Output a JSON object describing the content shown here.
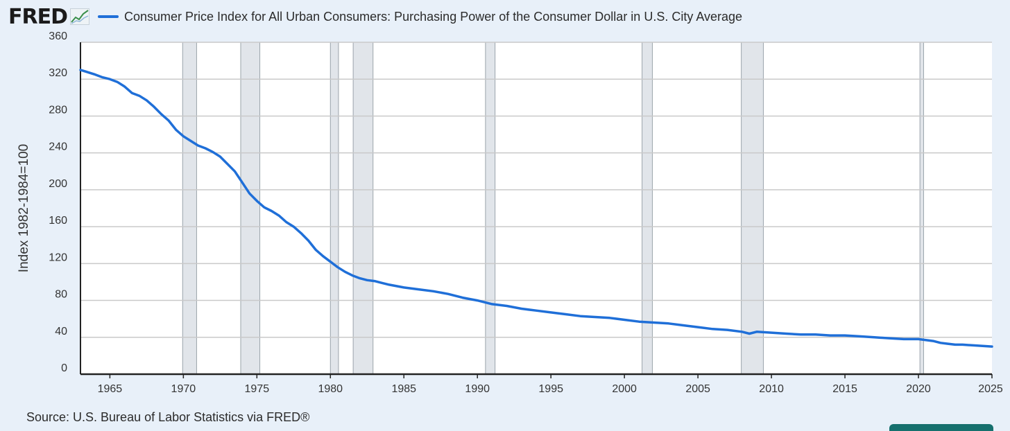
{
  "header": {
    "logo_text": "FRED",
    "logo_icon": "line-chart-icon",
    "legend_label": "Consumer Price Index for All Urban Consumers: Purchasing Power of the Consumer Dollar in U.S. City Average"
  },
  "footer": {
    "source": "Source: U.S. Bureau of Labor Statistics via FRED®"
  },
  "colors": {
    "series": "#1f6fd8",
    "recession": "#e1e5ea",
    "background": "#e8f0f9"
  },
  "chart_data": {
    "type": "line",
    "title": "Consumer Price Index for All Urban Consumers: Purchasing Power of the Consumer Dollar in U.S. City Average",
    "xlabel": "",
    "ylabel": "Index 1982-1984=100",
    "xlim": [
      1963.0,
      2025.0
    ],
    "ylim": [
      0,
      360
    ],
    "grid": true,
    "yticks": [
      0,
      40,
      80,
      120,
      160,
      200,
      240,
      280,
      320,
      360
    ],
    "xticks": [
      1965,
      1970,
      1975,
      1980,
      1985,
      1990,
      1995,
      2000,
      2005,
      2010,
      2015,
      2020,
      2025
    ],
    "recessions": [
      [
        1969.95,
        1970.9
      ],
      [
        1973.9,
        1975.2
      ],
      [
        1980.0,
        1980.55
      ],
      [
        1981.55,
        1982.9
      ],
      [
        1990.55,
        1991.2
      ],
      [
        2001.2,
        2001.9
      ],
      [
        2007.95,
        2009.45
      ],
      [
        2020.1,
        2020.35
      ]
    ],
    "series": [
      {
        "name": "Consumer Price Index for All Urban Consumers: Purchasing Power of the Consumer Dollar in U.S. City Average",
        "x": [
          1963.0,
          1963.4,
          1964.0,
          1964.5,
          1965.0,
          1965.5,
          1966.0,
          1966.5,
          1967.0,
          1967.5,
          1968.0,
          1968.5,
          1969.0,
          1969.5,
          1970.0,
          1970.5,
          1971.0,
          1971.5,
          1972.0,
          1972.5,
          1973.0,
          1973.5,
          1974.0,
          1974.5,
          1975.0,
          1975.5,
          1976.0,
          1976.5,
          1977.0,
          1977.5,
          1978.0,
          1978.5,
          1979.0,
          1979.5,
          1980.0,
          1980.5,
          1981.0,
          1981.5,
          1982.0,
          1982.5,
          1983.0,
          1983.5,
          1984.0,
          1985.0,
          1986.0,
          1987.0,
          1988.0,
          1989.0,
          1990.0,
          1991.0,
          1992.0,
          1993.0,
          1994.0,
          1995.0,
          1996.0,
          1997.0,
          1998.0,
          1999.0,
          2000.0,
          2001.0,
          2002.0,
          2003.0,
          2004.0,
          2005.0,
          2006.0,
          2007.0,
          2008.0,
          2008.5,
          2009.0,
          2010.0,
          2011.0,
          2012.0,
          2013.0,
          2014.0,
          2015.0,
          2016.0,
          2017.0,
          2018.0,
          2019.0,
          2020.0,
          2021.0,
          2021.5,
          2022.0,
          2022.5,
          2023.0,
          2024.0,
          2025.0
        ],
        "values": [
          330,
          328,
          325,
          322,
          320,
          317,
          312,
          305,
          302,
          297,
          290,
          282,
          275,
          265,
          258,
          253,
          248,
          245,
          241,
          236,
          228,
          220,
          208,
          196,
          188,
          181,
          177,
          172,
          165,
          160,
          153,
          145,
          135,
          128,
          122,
          116,
          111,
          107,
          104,
          102,
          101,
          99,
          97,
          94,
          92,
          90,
          87,
          83,
          80,
          76,
          74,
          71,
          69,
          67,
          65,
          63,
          62,
          61,
          59,
          57,
          56,
          55,
          53,
          51,
          49,
          48,
          46,
          44,
          46,
          45,
          44,
          43,
          43,
          42,
          42,
          41,
          40,
          39,
          38,
          38,
          36,
          34,
          33,
          32,
          32,
          31,
          30
        ]
      }
    ]
  }
}
